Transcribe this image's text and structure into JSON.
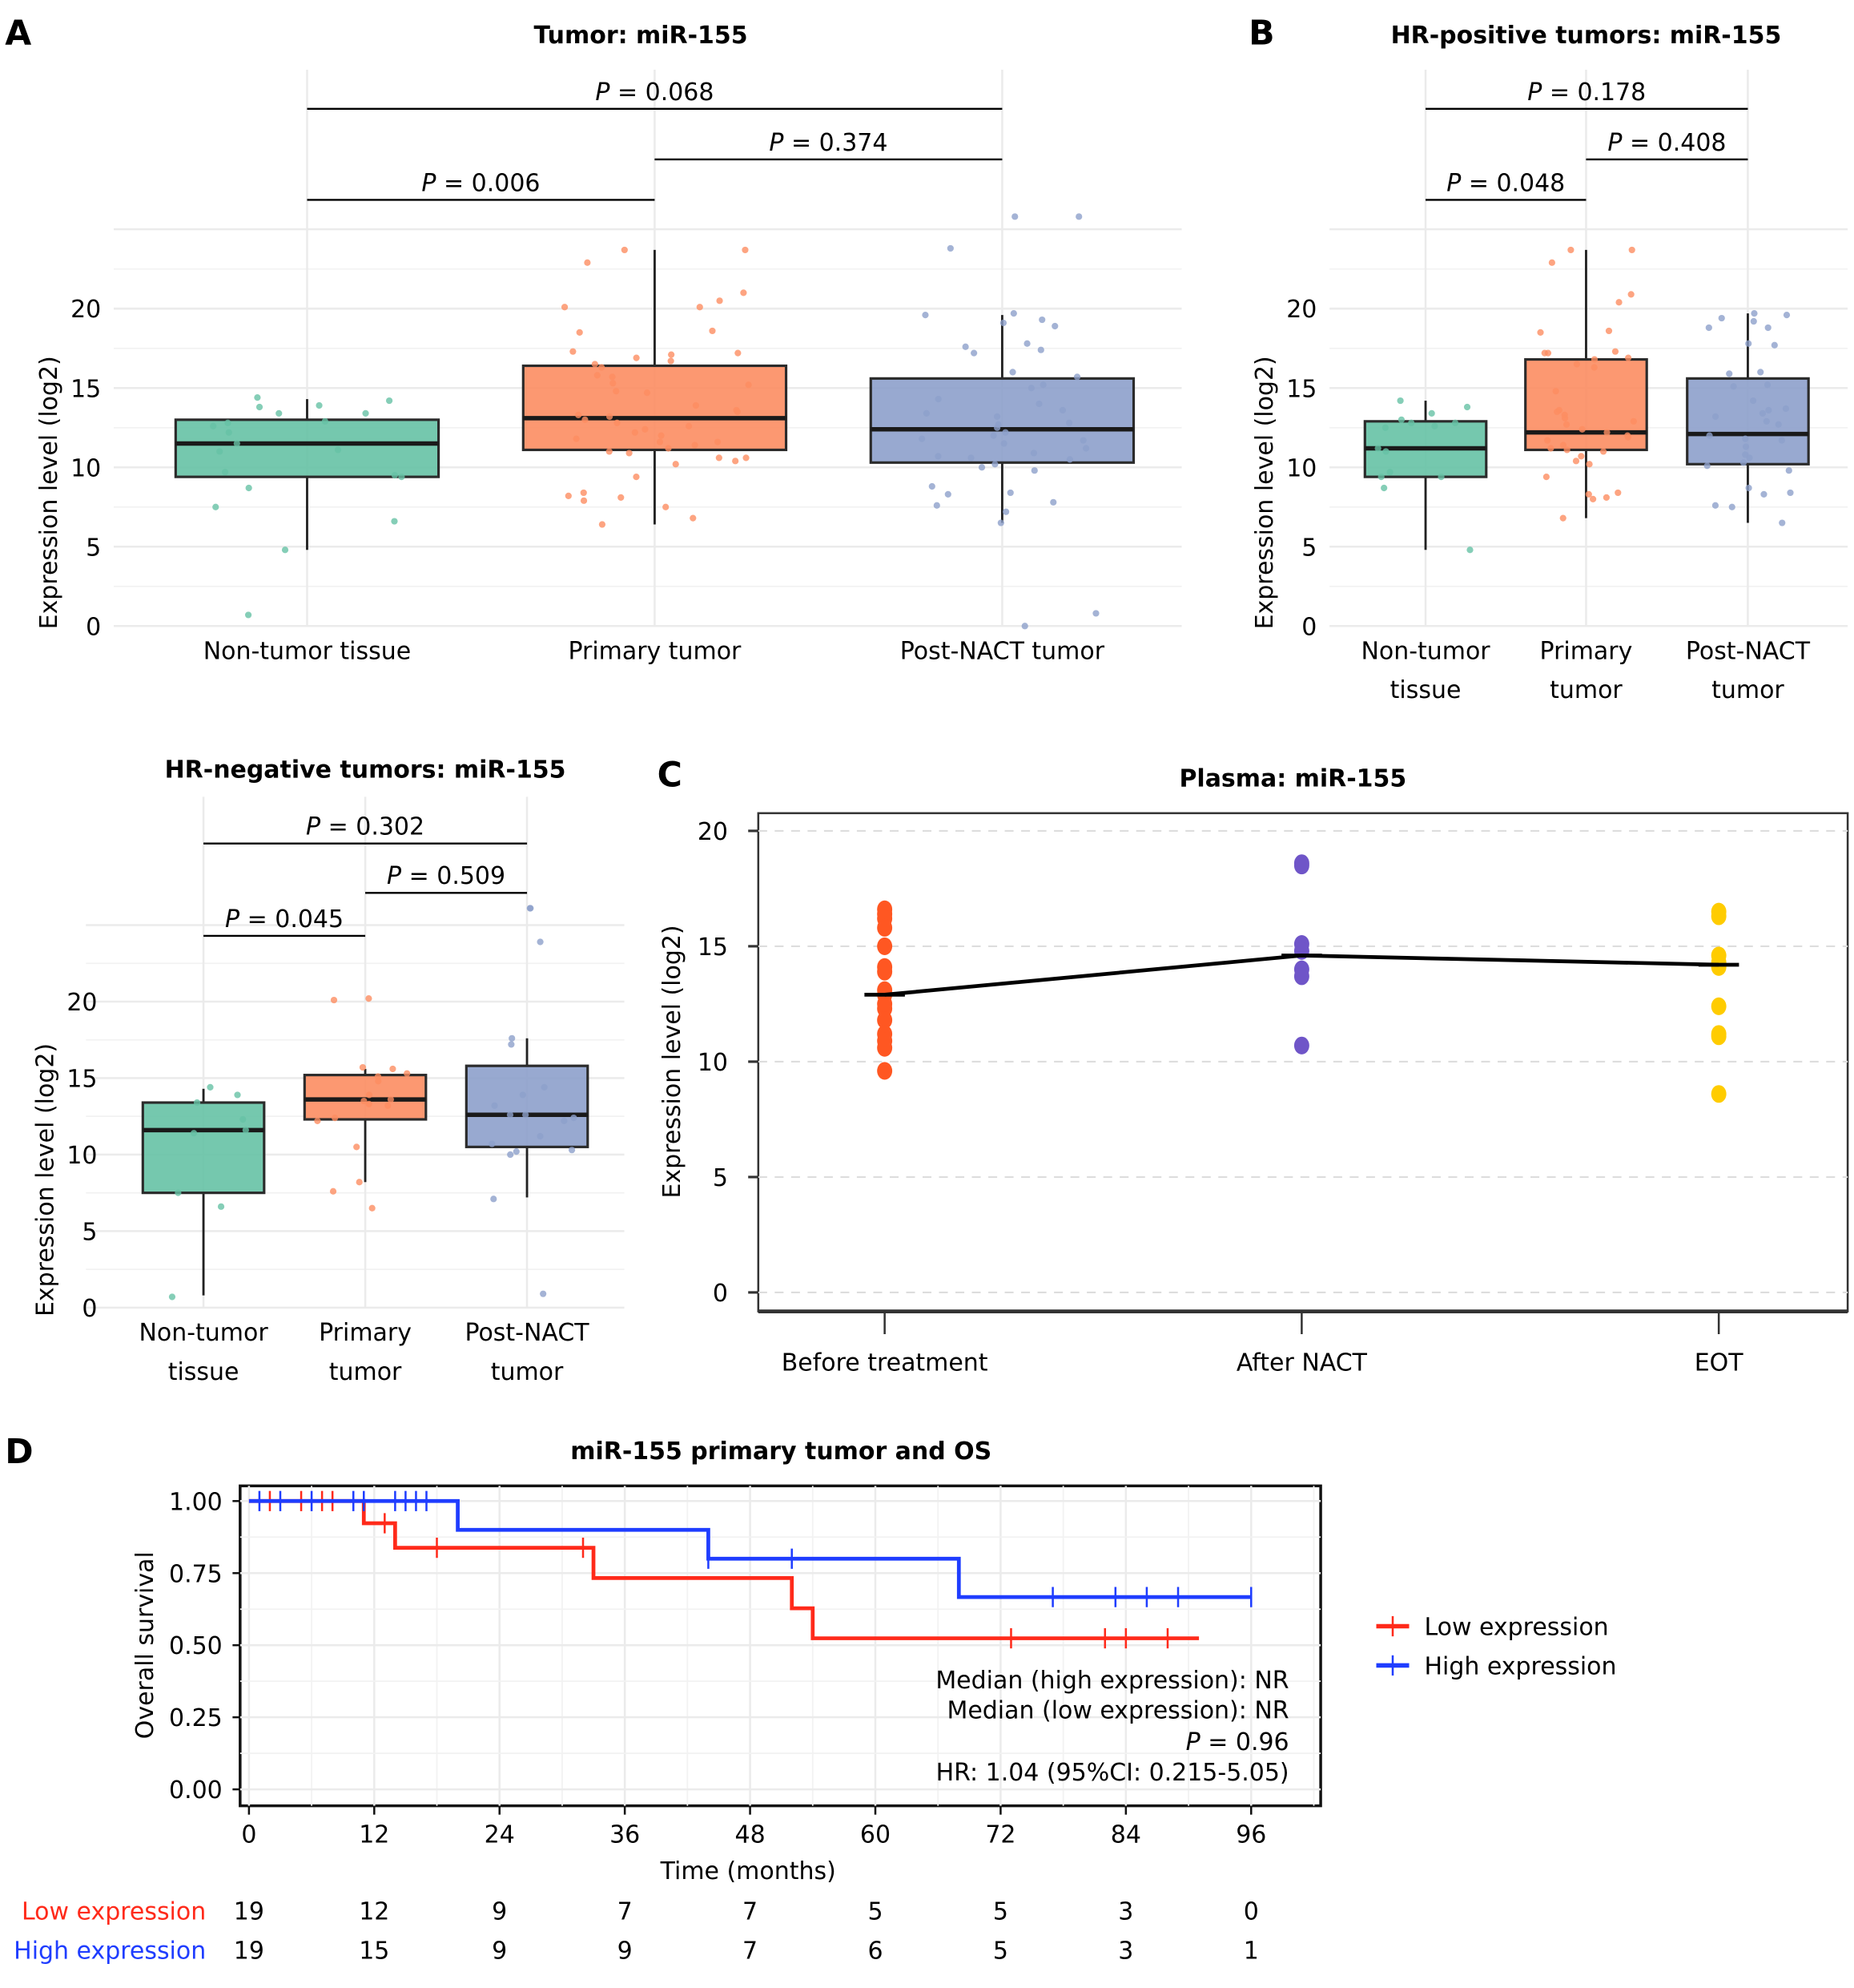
{
  "figure": {
    "panels": {
      "A": {
        "letter": "A"
      },
      "B": {
        "letter": "B"
      },
      "B2": {
        "letter": ""
      },
      "C": {
        "letter": "C"
      },
      "D": {
        "letter": "D"
      }
    }
  },
  "colors": {
    "non_tumor": "#66c2a5",
    "primary": "#fc8d62",
    "post_nact": "#8da0cb",
    "before_treatment": "#ff5722",
    "after_nact": "#6f55c8",
    "eot": "#ffcc00",
    "low_expression": "#ff2a1a",
    "high_expression": "#1f3dff"
  },
  "chart_data": [
    {
      "id": "A",
      "type": "box",
      "title": "Tumor: miR-155",
      "ylabel": "Expression level (log2)",
      "xlabel": "",
      "ylim": [
        0,
        26
      ],
      "yticks": [
        0,
        5,
        10,
        15,
        20
      ],
      "grid": true,
      "categories": [
        "Non-tumor tissue",
        "Primary tumor",
        "Post-NACT tumor"
      ],
      "boxes": [
        {
          "name": "Non-tumor tissue",
          "whisker_low": 4.8,
          "q1": 9.4,
          "median": 11.5,
          "q3": 13.0,
          "whisker_high": 14.3
        },
        {
          "name": "Primary tumor",
          "whisker_low": 6.4,
          "q1": 11.1,
          "median": 13.1,
          "q3": 16.4,
          "whisker_high": 23.7
        },
        {
          "name": "Post-NACT tumor",
          "whisker_low": 6.5,
          "q1": 10.3,
          "median": 12.4,
          "q3": 15.6,
          "whisker_high": 19.6
        }
      ],
      "points": [
        [
          14.4,
          14.2,
          13.9,
          13.8,
          13.4,
          13.4,
          12.9,
          12.8,
          12.6,
          12.2,
          11.5,
          11.1,
          11.0,
          9.7,
          9.5,
          9.4,
          8.7,
          7.5,
          6.6,
          4.8,
          0.7
        ],
        [
          23.7,
          23.7,
          22.9,
          21.0,
          20.5,
          20.1,
          20.1,
          18.6,
          18.5,
          17.3,
          17.2,
          17.1,
          16.9,
          16.7,
          16.5,
          16.3,
          15.8,
          15.7,
          15.3,
          15.2,
          14.8,
          14.7,
          13.9,
          13.6,
          13.5,
          13.3,
          13.2,
          13.0,
          12.8,
          12.6,
          12.4,
          12.2,
          12.0,
          11.8,
          11.6,
          11.6,
          11.4,
          11.2,
          11.0,
          10.9,
          10.6,
          10.6,
          10.4,
          10.2,
          9.4,
          8.4,
          8.2,
          8.1,
          7.9,
          7.5,
          6.8,
          6.4
        ],
        [
          25.8,
          25.8,
          23.8,
          19.7,
          19.6,
          19.3,
          19.1,
          18.9,
          17.8,
          17.6,
          17.4,
          17.2,
          16.0,
          15.7,
          15.2,
          15.0,
          14.3,
          14.0,
          13.6,
          13.4,
          13.2,
          12.8,
          12.7,
          12.5,
          12.2,
          12.0,
          11.8,
          11.7,
          11.5,
          11.2,
          10.9,
          10.7,
          10.6,
          10.5,
          10.2,
          10.0,
          9.8,
          8.8,
          8.4,
          8.3,
          7.8,
          7.6,
          7.2,
          6.5,
          0.8,
          0.0
        ]
      ],
      "comparisons": [
        {
          "from": "Non-tumor tissue",
          "to": "Primary tumor",
          "label": "P = 0.006"
        },
        {
          "from": "Primary tumor",
          "to": "Post-NACT tumor",
          "label": "P = 0.374"
        },
        {
          "from": "Non-tumor tissue",
          "to": "Post-NACT tumor",
          "label": "P = 0.068"
        }
      ]
    },
    {
      "id": "B",
      "type": "box",
      "title": "HR-positive tumors: miR-155",
      "ylabel": "Expression level (log2)",
      "xlabel": "",
      "ylim": [
        0,
        26
      ],
      "yticks": [
        0,
        5,
        10,
        15,
        20
      ],
      "grid": true,
      "categories": [
        "Non-tumor\ntissue",
        "Primary\ntumor",
        "Post-NACT\ntumor"
      ],
      "boxes": [
        {
          "name": "Non-tumor tissue",
          "whisker_low": 4.8,
          "q1": 9.4,
          "median": 11.2,
          "q3": 12.9,
          "whisker_high": 14.2
        },
        {
          "name": "Primary tumor",
          "whisker_low": 6.8,
          "q1": 11.1,
          "median": 12.2,
          "q3": 16.8,
          "whisker_high": 23.7
        },
        {
          "name": "Post-NACT tumor",
          "whisker_low": 6.5,
          "q1": 10.2,
          "median": 12.1,
          "q3": 15.6,
          "whisker_high": 19.7
        }
      ],
      "points": [
        [
          14.2,
          13.8,
          13.4,
          13.0,
          12.8,
          12.8,
          12.6,
          12.5,
          11.2,
          11.0,
          9.7,
          9.4,
          9.4,
          8.7,
          4.8
        ],
        [
          23.7,
          23.7,
          22.9,
          20.9,
          20.4,
          18.6,
          18.5,
          17.3,
          17.2,
          17.2,
          16.9,
          16.8,
          16.5,
          16.3,
          14.8,
          13.6,
          13.5,
          13.3,
          13.1,
          12.9,
          12.7,
          12.4,
          12.2,
          12.0,
          11.9,
          11.7,
          11.4,
          11.2,
          11.1,
          11.0,
          10.7,
          10.4,
          10.2,
          9.4,
          8.4,
          8.3,
          8.1,
          8.0,
          6.8
        ],
        [
          19.7,
          19.6,
          19.4,
          19.2,
          18.8,
          18.8,
          17.8,
          17.7,
          16.0,
          15.9,
          15.2,
          15.1,
          14.2,
          13.7,
          13.6,
          13.4,
          13.2,
          12.9,
          12.7,
          12.0,
          11.8,
          11.7,
          11.3,
          10.8,
          10.6,
          10.3,
          10.1,
          9.8,
          8.7,
          8.4,
          8.3,
          7.6,
          7.5,
          6.5
        ]
      ],
      "comparisons": [
        {
          "from": "Non-tumor tissue",
          "to": "Primary tumor",
          "label": "P = 0.048"
        },
        {
          "from": "Primary tumor",
          "to": "Post-NACT tumor",
          "label": "P = 0.408"
        },
        {
          "from": "Non-tumor tissue",
          "to": "Post-NACT tumor",
          "label": "P = 0.178"
        }
      ]
    },
    {
      "id": "B2",
      "type": "box",
      "title": "HR-negative tumors: miR-155",
      "ylabel": "Expression level (log2)",
      "xlabel": "",
      "ylim": [
        0,
        26
      ],
      "yticks": [
        0,
        5,
        10,
        15,
        20
      ],
      "grid": true,
      "categories": [
        "Non-tumor\ntissue",
        "Primary\ntumor",
        "Post-NACT\ntumor"
      ],
      "boxes": [
        {
          "name": "Non-tumor tissue",
          "whisker_low": 0.8,
          "q1": 7.5,
          "median": 11.6,
          "q3": 13.4,
          "whisker_high": 14.3
        },
        {
          "name": "Primary tumor",
          "whisker_low": 8.2,
          "q1": 12.3,
          "median": 13.6,
          "q3": 15.2,
          "whisker_high": 15.6
        },
        {
          "name": "Post-NACT tumor",
          "whisker_low": 7.2,
          "q1": 10.5,
          "median": 12.6,
          "q3": 15.8,
          "whisker_high": 17.6
        }
      ],
      "points": [
        [
          14.4,
          13.9,
          13.4,
          12.3,
          11.6,
          11.4,
          7.5,
          6.6,
          0.7
        ],
        [
          20.2,
          20.1,
          15.7,
          15.6,
          15.3,
          15.1,
          14.8,
          13.9,
          13.6,
          13.5,
          13.3,
          13.2,
          12.4,
          12.2,
          10.5,
          8.2,
          7.6,
          6.5
        ],
        [
          26.1,
          26.1,
          23.9,
          17.6,
          17.2,
          14.4,
          13.9,
          13.2,
          12.6,
          12.6,
          12.4,
          12.2,
          11.2,
          10.7,
          10.3,
          10.2,
          10.0,
          7.1,
          0.9
        ]
      ],
      "comparisons": [
        {
          "from": "Non-tumor tissue",
          "to": "Primary tumor",
          "label": "P = 0.045"
        },
        {
          "from": "Primary tumor",
          "to": "Post-NACT tumor",
          "label": "P = 0.509"
        },
        {
          "from": "Non-tumor tissue",
          "to": "Post-NACT tumor",
          "label": "P = 0.302"
        }
      ]
    },
    {
      "id": "C",
      "type": "scatter",
      "title": "Plasma: miR-155",
      "ylabel": "Expression level (log2)",
      "xlabel": "",
      "ylim": [
        -0.8,
        20.7
      ],
      "yticks": [
        0,
        5,
        10,
        15,
        20
      ],
      "grid": true,
      "categories": [
        "Before treatment",
        "After NACT",
        "EOT"
      ],
      "series": [
        {
          "name": "Before treatment",
          "values": [
            16.6,
            16.4,
            16.2,
            15.8,
            15.0,
            14.1,
            13.9,
            13.1,
            12.9,
            12.5,
            12.3,
            11.8,
            11.2,
            10.9,
            10.6,
            9.6
          ]
        },
        {
          "name": "After NACT",
          "values": [
            18.6,
            18.5,
            15.1,
            14.8,
            14.0,
            13.7,
            10.7
          ]
        },
        {
          "name": "EOT",
          "values": [
            16.5,
            16.3,
            14.6,
            14.3,
            14.1,
            12.4,
            11.2,
            11.1,
            8.6
          ]
        }
      ],
      "mean_line": [
        12.9,
        14.6,
        14.2
      ]
    },
    {
      "id": "D",
      "type": "line",
      "subtype": "kaplan-meier",
      "title": "miR-155 primary tumor and OS",
      "xlabel": "Time (months)",
      "ylabel": "Overall survival",
      "xlim": [
        -1,
        103
      ],
      "ylim": [
        -0.03,
        1.03
      ],
      "xticks": [
        0,
        12,
        24,
        36,
        48,
        60,
        72,
        84,
        96
      ],
      "yticks": [
        "0.00",
        "0.25",
        "0.50",
        "0.75",
        "1.00"
      ],
      "grid": true,
      "legend_position": "right",
      "series": [
        {
          "name": "Low expression",
          "steps": [
            [
              0,
              1.0
            ],
            [
              11,
              0.923
            ],
            [
              14,
              0.838
            ],
            [
              33,
              0.733
            ],
            [
              52,
              0.628
            ],
            [
              54,
              0.524
            ],
            [
              91,
              0.524
            ]
          ],
          "censored": [
            [
              2,
              1.0
            ],
            [
              5,
              1.0
            ],
            [
              7,
              1.0
            ],
            [
              8,
              1.0
            ],
            [
              13,
              0.923
            ],
            [
              18,
              0.838
            ],
            [
              32,
              0.838
            ],
            [
              73,
              0.524
            ],
            [
              82,
              0.524
            ],
            [
              84,
              0.524
            ],
            [
              88,
              0.524
            ]
          ],
          "at_risk": [
            19,
            12,
            9,
            7,
            7,
            5,
            5,
            3,
            0
          ]
        },
        {
          "name": "High expression",
          "steps": [
            [
              0,
              1.0
            ],
            [
              20,
              0.9
            ],
            [
              44,
              0.8
            ],
            [
              68,
              0.667
            ],
            [
              96,
              0.667
            ]
          ],
          "censored": [
            [
              1,
              1.0
            ],
            [
              3,
              1.0
            ],
            [
              6,
              1.0
            ],
            [
              10,
              1.0
            ],
            [
              11,
              1.0
            ],
            [
              14,
              1.0
            ],
            [
              15,
              1.0
            ],
            [
              16,
              1.0
            ],
            [
              17,
              1.0
            ],
            [
              44,
              0.8
            ],
            [
              52,
              0.8
            ],
            [
              77,
              0.667
            ],
            [
              83,
              0.667
            ],
            [
              86,
              0.667
            ],
            [
              89,
              0.667
            ],
            [
              96,
              0.667
            ]
          ],
          "at_risk": [
            19,
            15,
            9,
            9,
            7,
            6,
            5,
            3,
            1
          ]
        }
      ],
      "annotations": [
        "Median (high expression): NR",
        "Median (low expression): NR",
        "P = 0.96",
        "HR: 1.04 (95%CI: 0.215-5.05)"
      ],
      "risk_table_labels": [
        "Low expression",
        "High expression"
      ]
    }
  ]
}
